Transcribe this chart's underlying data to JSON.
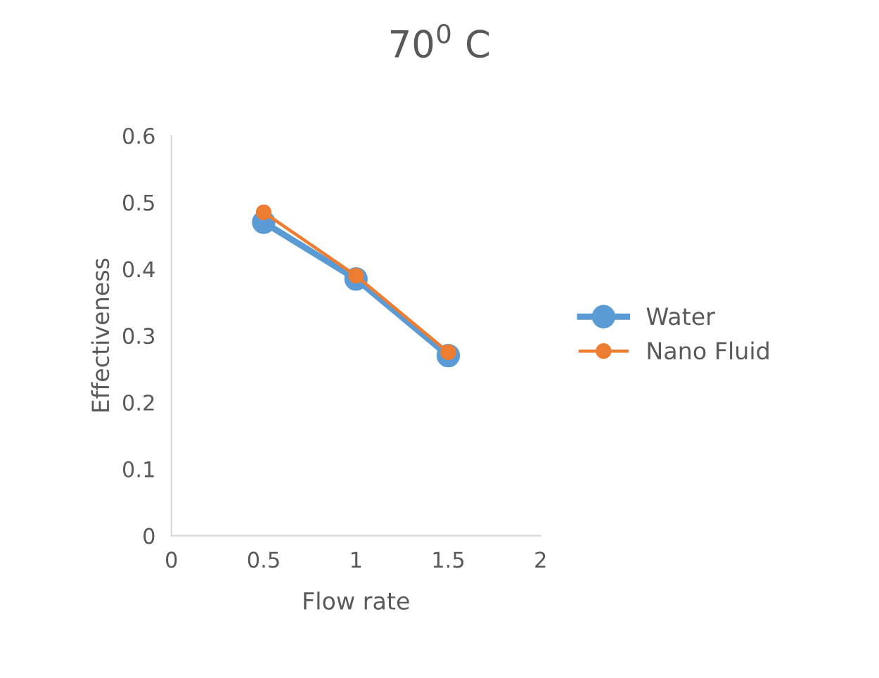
{
  "chart_data": {
    "type": "line",
    "title": "70$^{0}$ C",
    "xlabel": "Flow rate",
    "ylabel": "Effectiveness",
    "x": [
      0.5,
      1,
      1.5
    ],
    "series": [
      {
        "name": "Water",
        "color": "#5b9bd5",
        "values": [
          0.47,
          0.385,
          0.27
        ]
      },
      {
        "name": "Nano Fluid",
        "color": "#ed7d31",
        "values": [
          0.485,
          0.39,
          0.275
        ]
      }
    ],
    "xlim": [
      0,
      2
    ],
    "xticks": [
      0,
      0.5,
      1,
      1.5,
      2
    ],
    "ylim": [
      0,
      0.6
    ],
    "yticks": [
      0,
      0.1,
      0.2,
      0.3,
      0.4,
      0.5,
      0.6
    ],
    "grid": false,
    "legend": "right",
    "marker": "circle",
    "line_style": "solid"
  }
}
